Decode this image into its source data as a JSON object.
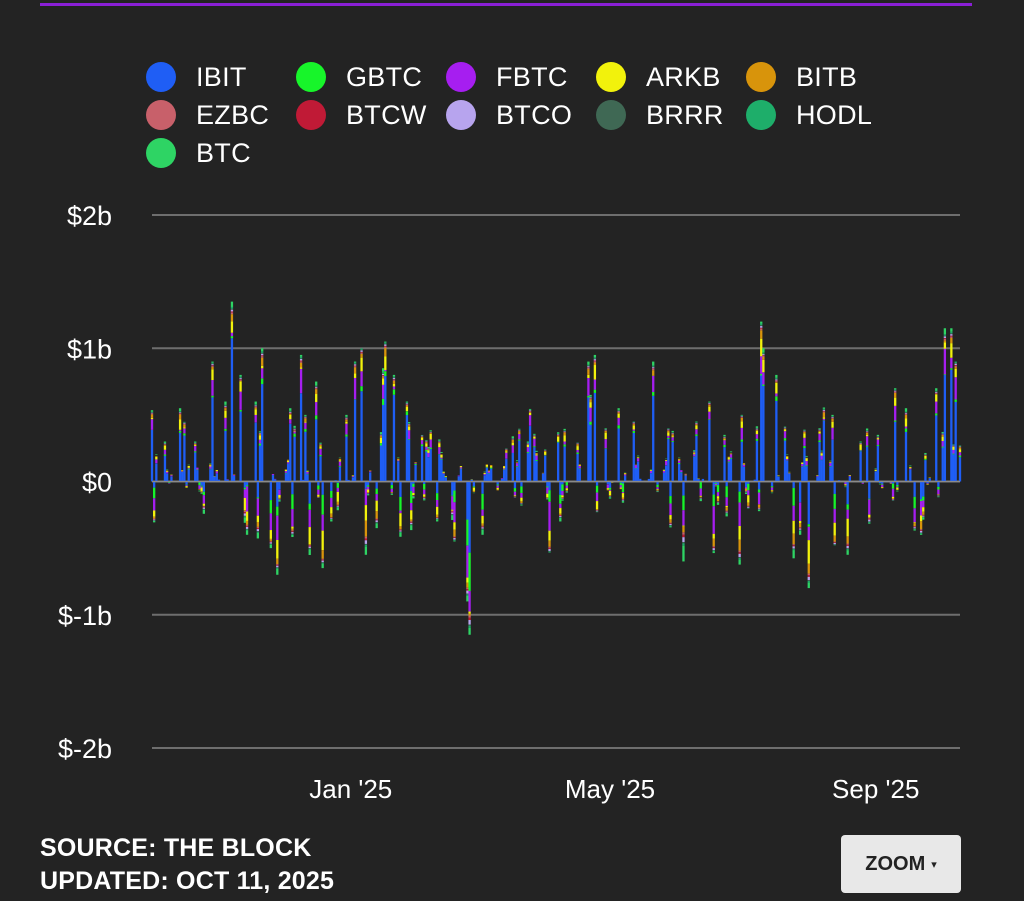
{
  "legend": [
    {
      "name": "IBIT",
      "color": "#1f5ef5"
    },
    {
      "name": "GBTC",
      "color": "#17f52a"
    },
    {
      "name": "FBTC",
      "color": "#a61ef0"
    },
    {
      "name": "ARKB",
      "color": "#f2f20c"
    },
    {
      "name": "BITB",
      "color": "#d8940b"
    },
    {
      "name": "EZBC",
      "color": "#c8606a"
    },
    {
      "name": "BTCW",
      "color": "#c01a36"
    },
    {
      "name": "BTCO",
      "color": "#b7a4ee"
    },
    {
      "name": "BRRR",
      "color": "#3f6854"
    },
    {
      "name": "HODL",
      "color": "#1eae6a"
    },
    {
      "name": "BTC",
      "color": "#2ed464"
    }
  ],
  "chart_data": {
    "type": "bar",
    "stacked": true,
    "y_unit": "$",
    "ylim": [
      -2000000000,
      2000000000
    ],
    "y_ticks": [
      {
        "value": 2000000000,
        "label": "$2b"
      },
      {
        "value": 1000000000,
        "label": "$1b"
      },
      {
        "value": 0,
        "label": "$0"
      },
      {
        "value": -1000000000,
        "label": "$-1b"
      },
      {
        "value": -2000000000,
        "label": "$-2b"
      }
    ],
    "x_range": [
      "2024-10-01",
      "2025-10-10"
    ],
    "x_ticks": [
      {
        "value": "2025-01-01",
        "label": "Jan '25"
      },
      {
        "value": "2025-05-01",
        "label": "May '25"
      },
      {
        "value": "2025-09-01",
        "label": "Sep '25"
      }
    ],
    "grid": true,
    "legend_position": "top",
    "series": [
      {
        "name": "IBIT",
        "color": "#1f5ef5"
      },
      {
        "name": "GBTC",
        "color": "#17f52a"
      },
      {
        "name": "FBTC",
        "color": "#a61ef0"
      },
      {
        "name": "ARKB",
        "color": "#f2f20c"
      },
      {
        "name": "BITB",
        "color": "#d8940b"
      },
      {
        "name": "EZBC",
        "color": "#c8606a"
      },
      {
        "name": "BTCW",
        "color": "#c01a36"
      },
      {
        "name": "BTCO",
        "color": "#b7a4ee"
      },
      {
        "name": "BRRR",
        "color": "#3f6854"
      },
      {
        "name": "HODL",
        "color": "#1eae6a"
      },
      {
        "name": "BTC",
        "color": "#2ed464"
      }
    ],
    "approx_daily_net_flow_millions": [
      [
        "2024-10-07",
        300
      ],
      [
        "2024-10-14",
        550
      ],
      [
        "2024-10-16",
        450
      ],
      [
        "2024-10-21",
        300
      ],
      [
        "2024-10-29",
        900
      ],
      [
        "2024-11-04",
        600
      ],
      [
        "2024-11-07",
        1350
      ],
      [
        "2024-11-11",
        800
      ],
      [
        "2024-11-14",
        -400
      ],
      [
        "2024-11-18",
        600
      ],
      [
        "2024-11-21",
        1000
      ],
      [
        "2024-11-25",
        -500
      ],
      [
        "2024-11-28",
        -700
      ],
      [
        "2024-12-04",
        550
      ],
      [
        "2024-12-09",
        950
      ],
      [
        "2024-12-11",
        500
      ],
      [
        "2024-12-16",
        750
      ],
      [
        "2024-12-19",
        -650
      ],
      [
        "2024-12-23",
        -300
      ],
      [
        "2024-12-30",
        500
      ],
      [
        "2025-01-03",
        900
      ],
      [
        "2025-01-06",
        1000
      ],
      [
        "2025-01-08",
        -550
      ],
      [
        "2025-01-13",
        -350
      ],
      [
        "2025-01-16",
        850
      ],
      [
        "2025-01-17",
        1050
      ],
      [
        "2025-01-21",
        800
      ],
      [
        "2025-01-27",
        600
      ],
      [
        "2025-02-03",
        350
      ],
      [
        "2025-02-10",
        -300
      ],
      [
        "2025-02-18",
        -450
      ],
      [
        "2025-02-24",
        -900
      ],
      [
        "2025-02-25",
        -1150
      ],
      [
        "2025-03-03",
        -400
      ],
      [
        "2025-03-14",
        250
      ],
      [
        "2025-03-24",
        300
      ],
      [
        "2025-04-08",
        -300
      ],
      [
        "2025-04-21",
        900
      ],
      [
        "2025-04-22",
        650
      ],
      [
        "2025-04-24",
        950
      ],
      [
        "2025-04-29",
        400
      ],
      [
        "2025-05-05",
        550
      ],
      [
        "2025-05-12",
        450
      ],
      [
        "2025-05-21",
        900
      ],
      [
        "2025-05-28",
        400
      ],
      [
        "2025-06-04",
        -600
      ],
      [
        "2025-06-10",
        450
      ],
      [
        "2025-06-16",
        600
      ],
      [
        "2025-06-23",
        350
      ],
      [
        "2025-07-01",
        500
      ],
      [
        "2025-07-10",
        1200
      ],
      [
        "2025-07-11",
        1000
      ],
      [
        "2025-07-17",
        800
      ],
      [
        "2025-07-28",
        -400
      ],
      [
        "2025-08-01",
        -800
      ],
      [
        "2025-08-06",
        400
      ],
      [
        "2025-08-12",
        500
      ],
      [
        "2025-08-19",
        -550
      ],
      [
        "2025-08-25",
        300
      ],
      [
        "2025-09-02",
        350
      ],
      [
        "2025-09-10",
        700
      ],
      [
        "2025-09-15",
        550
      ],
      [
        "2025-09-22",
        -400
      ],
      [
        "2025-09-29",
        700
      ],
      [
        "2025-10-03",
        1150
      ],
      [
        "2025-10-06",
        1150
      ],
      [
        "2025-10-08",
        900
      ]
    ]
  },
  "footer": {
    "source": "SOURCE: THE BLOCK",
    "updated": "UPDATED: OCT 11, 2025"
  },
  "zoom": {
    "label": "ZOOM",
    "caret": "▾"
  }
}
